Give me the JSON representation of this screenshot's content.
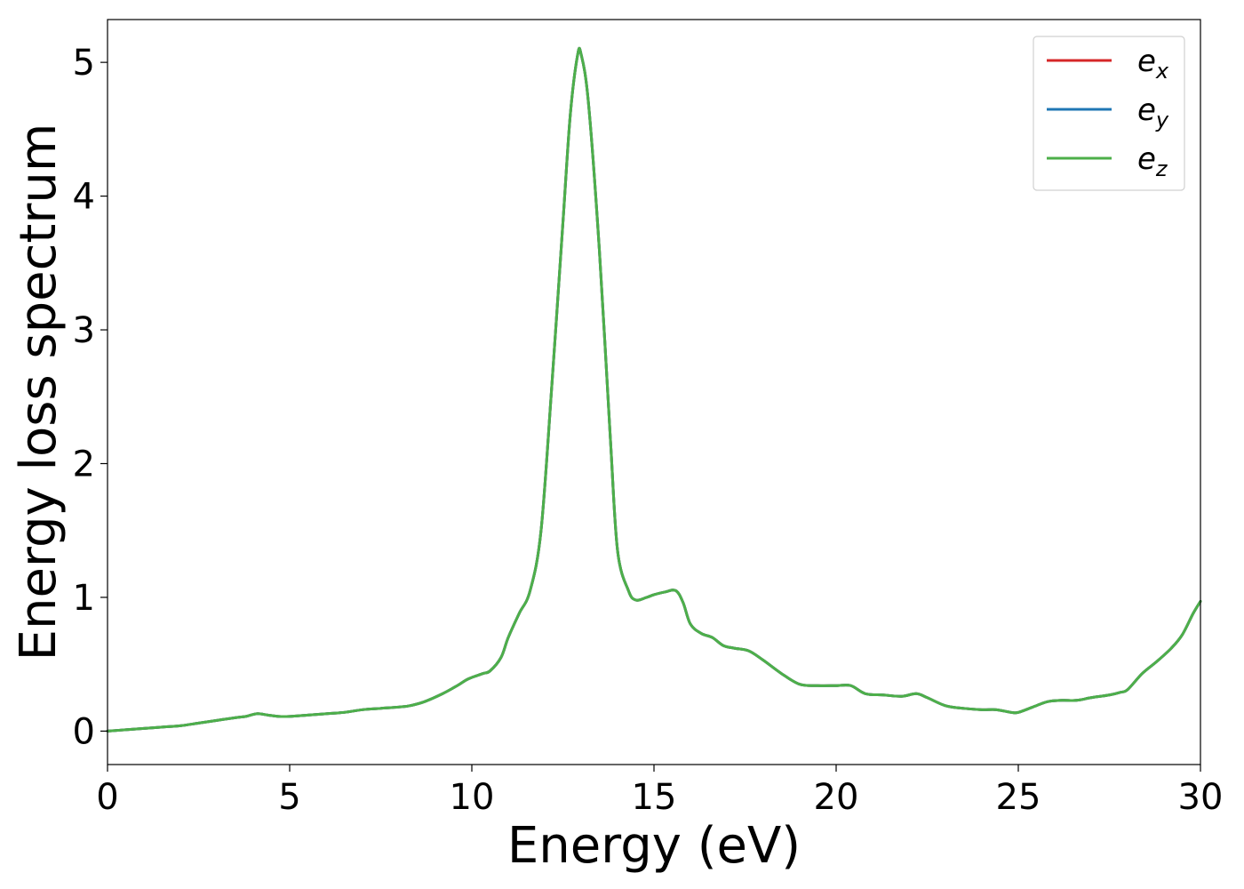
{
  "chart_data": {
    "type": "line",
    "title": "",
    "xlabel": "Energy (eV)",
    "ylabel": "Energy loss spectrum",
    "xlim": [
      0,
      30
    ],
    "ylim": [
      -0.25,
      5.32
    ],
    "xticks": [
      0,
      5,
      10,
      15,
      20,
      25,
      30
    ],
    "xtick_labels": [
      "0",
      "5",
      "10",
      "15",
      "20",
      "25",
      "30"
    ],
    "yticks": [
      0,
      1,
      2,
      3,
      4,
      5
    ],
    "ytick_labels": [
      "0",
      "1",
      "2",
      "3",
      "4",
      "5"
    ],
    "grid": false,
    "legend_position": "top-right",
    "x": [
      0,
      0.5,
      1,
      1.5,
      2,
      2.5,
      3,
      3.5,
      3.8,
      4.1,
      4.4,
      4.7,
      5,
      5.5,
      6,
      6.5,
      7,
      7.5,
      8,
      8.3,
      8.7,
      9.2,
      9.6,
      9.9,
      10.3,
      10.5,
      10.8,
      11,
      11.3,
      11.6,
      11.9,
      12.2,
      12.5,
      12.7,
      12.9,
      13.0,
      13.2,
      13.5,
      13.8,
      14.0,
      14.3,
      14.5,
      14.8,
      15.0,
      15.3,
      15.6,
      15.8,
      16.0,
      16.3,
      16.6,
      16.9,
      17.2,
      17.6,
      18.0,
      18.5,
      19.0,
      19.5,
      20.0,
      20.4,
      20.8,
      21.3,
      21.8,
      22.2,
      22.5,
      23.0,
      23.5,
      24.0,
      24.4,
      24.8,
      25.0,
      25.4,
      25.8,
      26.2,
      26.6,
      27.0,
      27.5,
      27.8,
      28.0,
      28.4,
      28.8,
      29.2,
      29.5,
      29.8,
      30.0
    ],
    "series": [
      {
        "name": "e_x",
        "label_base": "e",
        "label_sub": "x",
        "color": "#d62728",
        "values": [
          0.0,
          0.01,
          0.02,
          0.03,
          0.04,
          0.06,
          0.08,
          0.1,
          0.11,
          0.13,
          0.12,
          0.11,
          0.11,
          0.12,
          0.13,
          0.14,
          0.16,
          0.17,
          0.18,
          0.19,
          0.22,
          0.28,
          0.34,
          0.39,
          0.43,
          0.45,
          0.55,
          0.7,
          0.88,
          1.05,
          1.5,
          2.6,
          3.8,
          4.6,
          5.05,
          5.06,
          4.7,
          3.6,
          2.2,
          1.35,
          1.05,
          0.98,
          1.0,
          1.02,
          1.04,
          1.05,
          0.96,
          0.8,
          0.73,
          0.7,
          0.64,
          0.62,
          0.6,
          0.53,
          0.43,
          0.35,
          0.34,
          0.34,
          0.34,
          0.28,
          0.27,
          0.26,
          0.28,
          0.25,
          0.19,
          0.17,
          0.16,
          0.16,
          0.14,
          0.14,
          0.18,
          0.22,
          0.23,
          0.23,
          0.25,
          0.27,
          0.29,
          0.31,
          0.43,
          0.52,
          0.62,
          0.72,
          0.88,
          0.97
        ]
      },
      {
        "name": "e_y",
        "label_base": "e",
        "label_sub": "y",
        "color": "#1f77b4",
        "values": [
          0.0,
          0.01,
          0.02,
          0.03,
          0.04,
          0.06,
          0.08,
          0.1,
          0.11,
          0.13,
          0.12,
          0.11,
          0.11,
          0.12,
          0.13,
          0.14,
          0.16,
          0.17,
          0.18,
          0.19,
          0.22,
          0.28,
          0.34,
          0.39,
          0.43,
          0.45,
          0.55,
          0.7,
          0.88,
          1.05,
          1.5,
          2.6,
          3.8,
          4.6,
          5.05,
          5.06,
          4.7,
          3.6,
          2.2,
          1.35,
          1.05,
          0.98,
          1.0,
          1.02,
          1.04,
          1.05,
          0.96,
          0.8,
          0.73,
          0.7,
          0.64,
          0.62,
          0.6,
          0.53,
          0.43,
          0.35,
          0.34,
          0.34,
          0.34,
          0.28,
          0.27,
          0.26,
          0.28,
          0.25,
          0.19,
          0.17,
          0.16,
          0.16,
          0.14,
          0.14,
          0.18,
          0.22,
          0.23,
          0.23,
          0.25,
          0.27,
          0.29,
          0.31,
          0.43,
          0.52,
          0.62,
          0.72,
          0.88,
          0.97
        ]
      },
      {
        "name": "e_z",
        "label_base": "e",
        "label_sub": "z",
        "color": "#4daf4a",
        "values": [
          0.0,
          0.01,
          0.02,
          0.03,
          0.04,
          0.06,
          0.08,
          0.1,
          0.11,
          0.13,
          0.12,
          0.11,
          0.11,
          0.12,
          0.13,
          0.14,
          0.16,
          0.17,
          0.18,
          0.19,
          0.22,
          0.28,
          0.34,
          0.39,
          0.43,
          0.45,
          0.55,
          0.7,
          0.88,
          1.05,
          1.5,
          2.6,
          3.8,
          4.6,
          5.05,
          5.06,
          4.7,
          3.6,
          2.2,
          1.35,
          1.05,
          0.98,
          1.0,
          1.02,
          1.04,
          1.05,
          0.96,
          0.8,
          0.73,
          0.7,
          0.64,
          0.62,
          0.6,
          0.53,
          0.43,
          0.35,
          0.34,
          0.34,
          0.34,
          0.28,
          0.27,
          0.26,
          0.28,
          0.25,
          0.19,
          0.17,
          0.16,
          0.16,
          0.14,
          0.14,
          0.18,
          0.22,
          0.23,
          0.23,
          0.25,
          0.27,
          0.29,
          0.31,
          0.43,
          0.52,
          0.62,
          0.72,
          0.88,
          0.97
        ]
      }
    ]
  }
}
